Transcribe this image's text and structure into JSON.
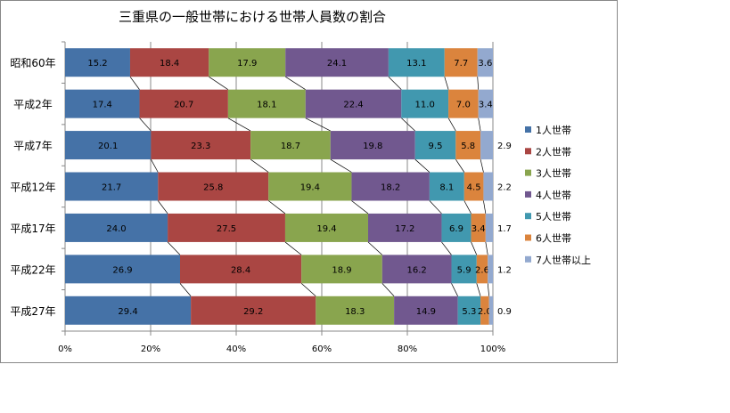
{
  "chart_data": {
    "type": "bar",
    "orientation": "horizontal",
    "stacked": "percent",
    "title": "三重県の一般世帯における世帯人員数の割合",
    "categories": [
      "昭和60年",
      "平成2年",
      "平成7年",
      "平成12年",
      "平成17年",
      "平成22年",
      "平成27年"
    ],
    "series": [
      {
        "name": "1人世帯",
        "color": "#4572A7",
        "values": [
          15.2,
          17.4,
          20.1,
          21.7,
          24.0,
          26.9,
          29.4
        ]
      },
      {
        "name": "2人世帯",
        "color": "#AA4643",
        "values": [
          18.4,
          20.7,
          23.3,
          25.8,
          27.5,
          28.4,
          29.2
        ]
      },
      {
        "name": "3人世帯",
        "color": "#89A54E",
        "values": [
          17.9,
          18.1,
          18.7,
          19.4,
          19.4,
          18.9,
          18.3
        ]
      },
      {
        "name": "4人世帯",
        "color": "#71588F",
        "values": [
          24.1,
          22.4,
          19.8,
          18.2,
          17.2,
          16.2,
          14.9
        ]
      },
      {
        "name": "5人世帯",
        "color": "#4198AF",
        "values": [
          13.1,
          11.0,
          9.5,
          8.1,
          6.9,
          5.9,
          5.3
        ]
      },
      {
        "name": "6人世帯",
        "color": "#DB843D",
        "values": [
          7.7,
          7.0,
          5.8,
          4.5,
          3.4,
          2.6,
          2.0
        ]
      },
      {
        "name": "7人世帯以上",
        "color": "#93A9CF",
        "values": [
          3.6,
          3.4,
          2.9,
          2.2,
          1.7,
          1.2,
          0.9
        ]
      }
    ],
    "xticks": [
      "0%",
      "20%",
      "40%",
      "60%",
      "80%",
      "100%"
    ],
    "xlim": [
      0,
      100
    ],
    "grid": "vertical",
    "series_lines": true,
    "legend": "right"
  }
}
